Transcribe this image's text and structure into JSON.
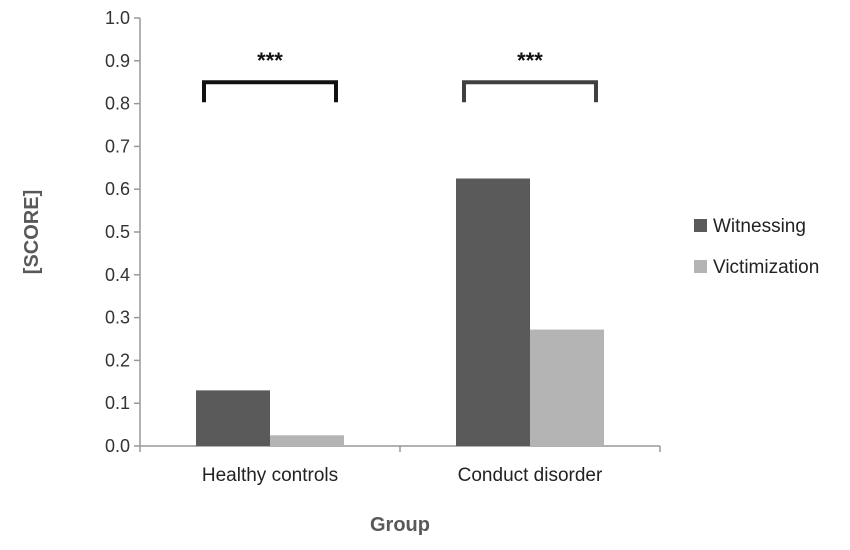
{
  "chart_data": {
    "type": "bar",
    "title": "",
    "xlabel": "Group",
    "ylabel": "[SCORE]",
    "ylim": [
      0,
      1.0
    ],
    "yticks": [
      "0.0",
      "0.1",
      "0.2",
      "0.3",
      "0.4",
      "0.5",
      "0.6",
      "0.7",
      "0.8",
      "0.9",
      "1.0"
    ],
    "grid": false,
    "legend_position": "right",
    "categories": [
      "Healthy controls",
      "Conduct disorder"
    ],
    "series": [
      {
        "name": "Witnessing",
        "values": [
          0.13,
          0.625
        ],
        "color": "#5a5a5a"
      },
      {
        "name": "Victimization",
        "values": [
          0.025,
          0.272
        ],
        "color": "#b4b4b4"
      }
    ],
    "annotations": [
      {
        "category": "Healthy controls",
        "text": "***",
        "bracket_y": 0.85,
        "bracket_color": "#111111"
      },
      {
        "category": "Conduct disorder",
        "text": "***",
        "bracket_y": 0.85,
        "bracket_color": "#404040"
      }
    ]
  }
}
